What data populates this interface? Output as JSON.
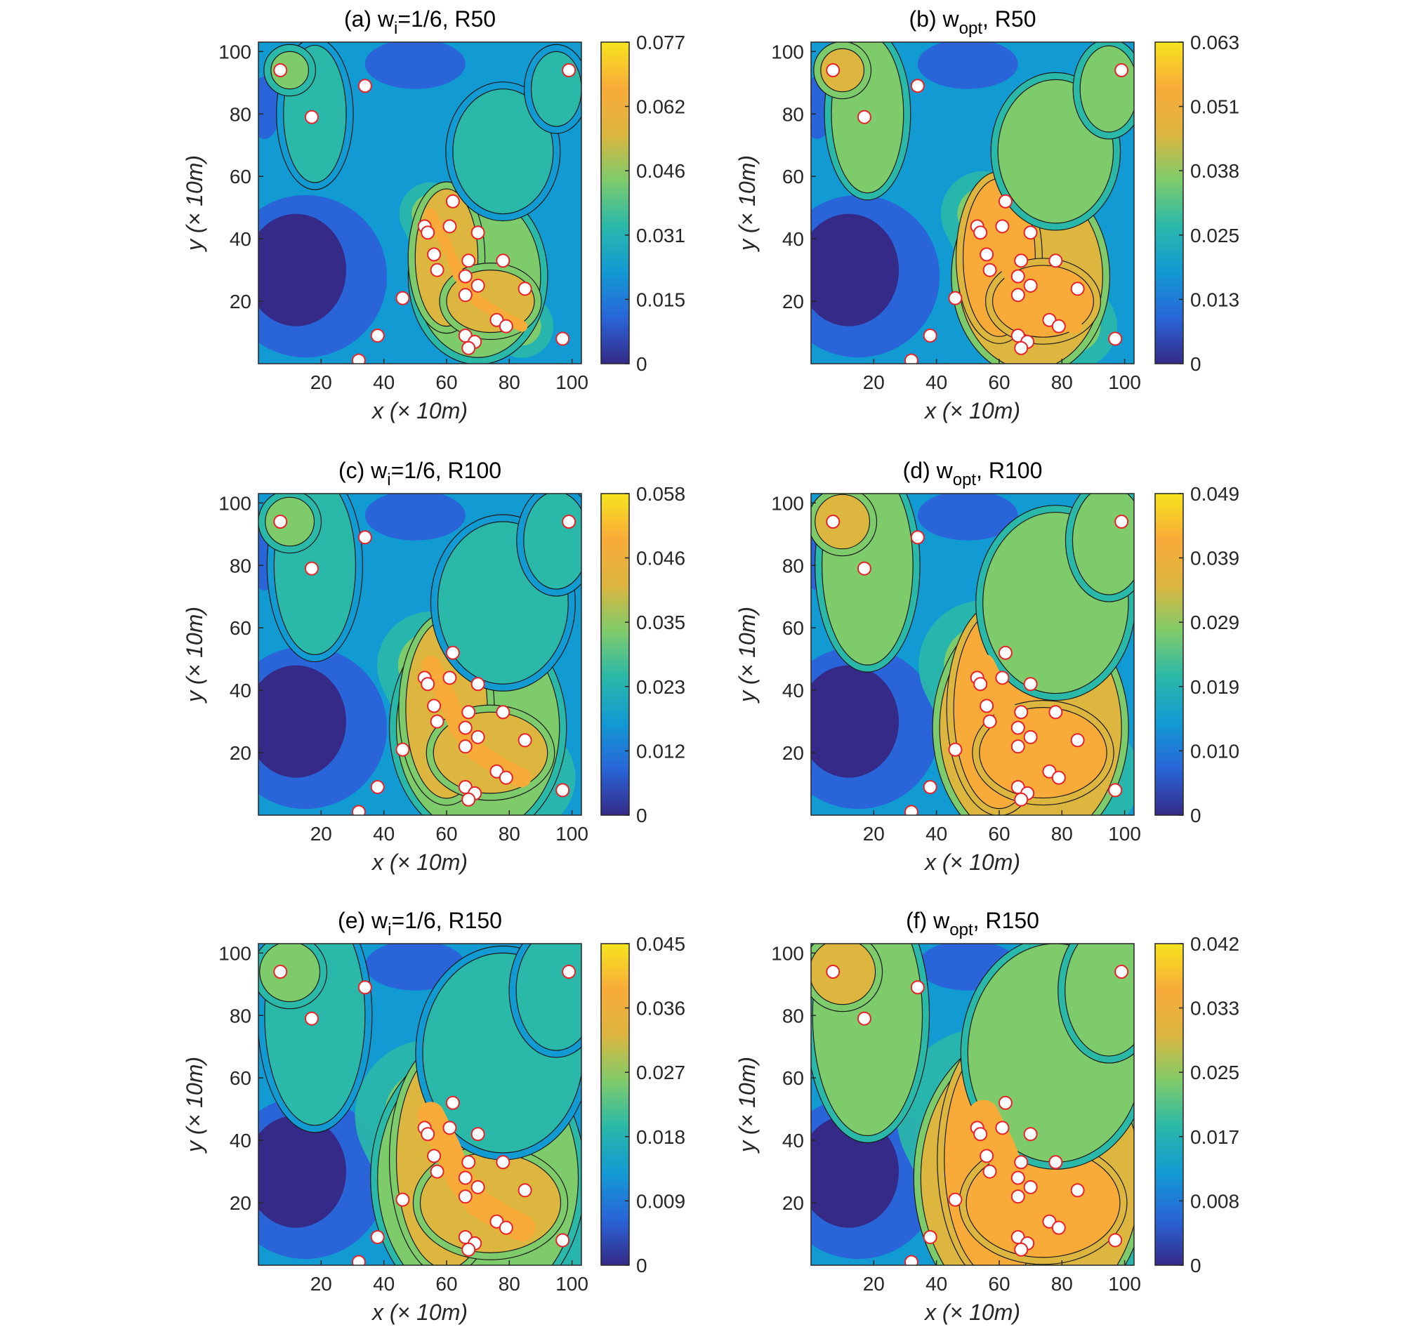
{
  "figure": {
    "x_ticks": [
      "20",
      "40",
      "60",
      "80",
      "100"
    ],
    "y_ticks": [
      "20",
      "40",
      "60",
      "80",
      "100"
    ],
    "xlabel": "x (× 10m)",
    "ylabel": "y (× 10m)"
  },
  "chart_data": [
    {
      "type": "heatmap",
      "title": {
        "prefix": "(a) w",
        "sub": "i",
        "suffix": "=1/6, R50"
      },
      "xlabel": "x (× 10m)",
      "ylabel": "y (× 10m)",
      "xlim": [
        0,
        103
      ],
      "ylim": [
        0,
        103
      ],
      "colorbar": {
        "min": 0,
        "max": 0.077,
        "ticks": [
          "0.077",
          "0.062",
          "0.046",
          "0.031",
          "0.015",
          "0"
        ]
      },
      "colormap": "parula",
      "contour_lines": true,
      "description": "high values along central corridor x 50-85, y 5-50; low values lower-left and upper region"
    },
    {
      "type": "heatmap",
      "title": {
        "prefix": "(b) w",
        "sub": "opt",
        "suffix": ", R50"
      },
      "xlabel": "x (× 10m)",
      "ylabel": "y (× 10m)",
      "xlim": [
        0,
        103
      ],
      "ylim": [
        0,
        103
      ],
      "colorbar": {
        "min": 0,
        "max": 0.063,
        "ticks": [
          "0.063",
          "0.051",
          "0.038",
          "0.025",
          "0.013",
          "0"
        ]
      },
      "colormap": "parula",
      "contour_lines": true
    },
    {
      "type": "heatmap",
      "title": {
        "prefix": "(c) w",
        "sub": "i",
        "suffix": "=1/6, R100"
      },
      "xlabel": "x (× 10m)",
      "ylabel": "y (× 10m)",
      "xlim": [
        0,
        103
      ],
      "ylim": [
        0,
        103
      ],
      "colorbar": {
        "min": 0,
        "max": 0.058,
        "ticks": [
          "0.058",
          "0.046",
          "0.035",
          "0.023",
          "0.012",
          "0"
        ]
      },
      "colormap": "parula",
      "contour_lines": true
    },
    {
      "type": "heatmap",
      "title": {
        "prefix": "(d) w",
        "sub": "opt",
        "suffix": ", R100"
      },
      "xlabel": "x (× 10m)",
      "ylabel": "y (× 10m)",
      "xlim": [
        0,
        103
      ],
      "ylim": [
        0,
        103
      ],
      "colorbar": {
        "min": 0,
        "max": 0.049,
        "ticks": [
          "0.049",
          "0.039",
          "0.029",
          "0.019",
          "0.010",
          "0"
        ]
      },
      "colormap": "parula",
      "contour_lines": true
    },
    {
      "type": "heatmap",
      "title": {
        "prefix": "(e) w",
        "sub": "i",
        "suffix": "=1/6, R150"
      },
      "xlabel": "x (× 10m)",
      "ylabel": "y (× 10m)",
      "xlim": [
        0,
        103
      ],
      "ylim": [
        0,
        103
      ],
      "colorbar": {
        "min": 0,
        "max": 0.045,
        "ticks": [
          "0.045",
          "0.036",
          "0.027",
          "0.018",
          "0.009",
          "0"
        ]
      },
      "colormap": "parula",
      "contour_lines": true
    },
    {
      "type": "heatmap",
      "title": {
        "prefix": "(f) w",
        "sub": "opt",
        "suffix": ", R150"
      },
      "xlabel": "x (× 10m)",
      "ylabel": "y (× 10m)",
      "xlim": [
        0,
        103
      ],
      "ylim": [
        0,
        103
      ],
      "colorbar": {
        "min": 0,
        "max": 0.042,
        "ticks": [
          "0.042",
          "0.033",
          "0.025",
          "0.017",
          "0.008",
          "0"
        ]
      },
      "colormap": "parula",
      "contour_lines": true
    }
  ],
  "points": [
    [
      7,
      94
    ],
    [
      17,
      79
    ],
    [
      34,
      89
    ],
    [
      99,
      94
    ],
    [
      62,
      52
    ],
    [
      53,
      44
    ],
    [
      54,
      42
    ],
    [
      61,
      44
    ],
    [
      56,
      35
    ],
    [
      57,
      30
    ],
    [
      70,
      42
    ],
    [
      67,
      33
    ],
    [
      78,
      33
    ],
    [
      66,
      28
    ],
    [
      70,
      25
    ],
    [
      66,
      22
    ],
    [
      85,
      24
    ],
    [
      46,
      21
    ],
    [
      76,
      14
    ],
    [
      79,
      12
    ],
    [
      38,
      9
    ],
    [
      66,
      9
    ],
    [
      69,
      7
    ],
    [
      67,
      5
    ],
    [
      97,
      8
    ],
    [
      32,
      1
    ]
  ],
  "colors": {
    "parula": [
      "#352a87",
      "#2965d8",
      "#129ad3",
      "#2ab8a9",
      "#7ecb6b",
      "#dcb63f",
      "#f9ab3a",
      "#f6e41d"
    ],
    "marker_fill": "#ffffff",
    "marker_edge": "#e8232a",
    "contour": "#1a1a1a"
  }
}
